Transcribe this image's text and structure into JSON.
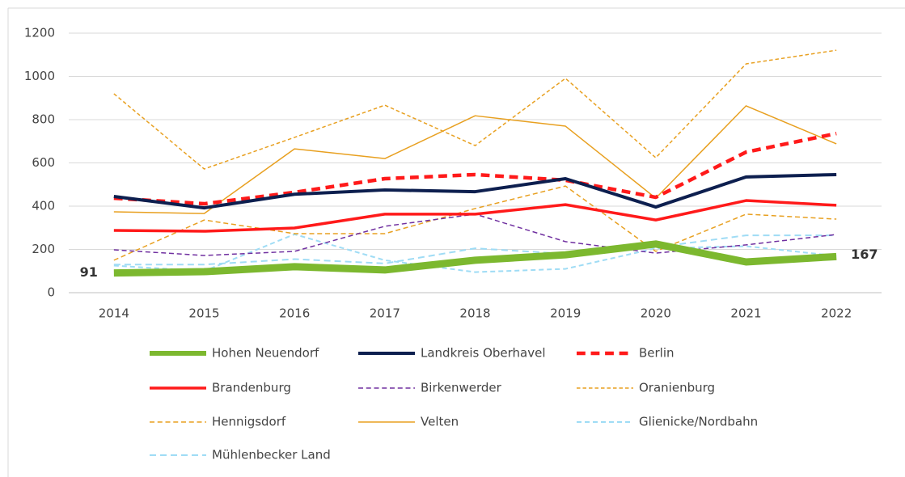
{
  "chart_data": {
    "type": "line",
    "x": [
      2014,
      2015,
      2016,
      2017,
      2018,
      2019,
      2020,
      2021,
      2022
    ],
    "xlim": [
      2013.5,
      2022.5
    ],
    "ylim": [
      0,
      1200
    ],
    "yticks": [
      0,
      200,
      400,
      600,
      800,
      1000,
      1200
    ],
    "grid": true,
    "series": [
      {
        "name": "Hohen Neuendorf",
        "color": "#7cb82f",
        "linestyle": "solid",
        "linewidth": 9,
        "values": [
          91,
          97,
          120,
          105,
          150,
          175,
          225,
          142,
          167
        ]
      },
      {
        "name": "Landkreis Oberhavel",
        "color": "#0d1f4f",
        "linestyle": "solid",
        "linewidth": 4,
        "values": [
          445,
          392,
          455,
          475,
          467,
          527,
          396,
          535,
          546
        ]
      },
      {
        "name": "Berlin",
        "color": "#ff1a1a",
        "linestyle": "dashed",
        "linewidth": 4.5,
        "values": [
          437,
          411,
          464,
          527,
          546,
          520,
          441,
          650,
          736
        ]
      },
      {
        "name": "Brandenburg",
        "color": "#ff1a1a",
        "linestyle": "solid",
        "linewidth": 3.5,
        "values": [
          288,
          284,
          299,
          363,
          363,
          407,
          336,
          426,
          404
        ]
      },
      {
        "name": "Birkenwerder",
        "color": "#7030a0",
        "linestyle": "dashed",
        "linewidth": 1.5,
        "values": [
          198,
          172,
          191,
          307,
          363,
          236,
          183,
          221,
          269
        ]
      },
      {
        "name": "Oranienburg",
        "color": "#e8a020",
        "linestyle": "dotted",
        "linewidth": 1.5,
        "values": [
          920,
          572,
          718,
          867,
          680,
          991,
          624,
          1058,
          1121
        ]
      },
      {
        "name": "Hennigsdorf",
        "color": "#e8a020",
        "linestyle": "dashed",
        "linewidth": 1.5,
        "values": [
          150,
          336,
          273,
          273,
          389,
          493,
          191,
          363,
          340
        ]
      },
      {
        "name": "Velten",
        "color": "#e8a020",
        "linestyle": "solid",
        "linewidth": 1.5,
        "values": [
          374,
          366,
          665,
          620,
          818,
          770,
          437,
          864,
          688
        ]
      },
      {
        "name": "Glienicke/Nordbahn",
        "color": "#9fdcf5",
        "linestyle": "dotted",
        "linewidth": 2,
        "values": [
          125,
          100,
          270,
          150,
          95,
          110,
          205,
          215,
          170
        ]
      },
      {
        "name": "Mühlenbecker Land",
        "color": "#9fdcf5",
        "linestyle": "dashed",
        "linewidth": 2,
        "values": [
          130,
          130,
          155,
          135,
          205,
          180,
          210,
          265,
          265
        ]
      }
    ]
  }
}
